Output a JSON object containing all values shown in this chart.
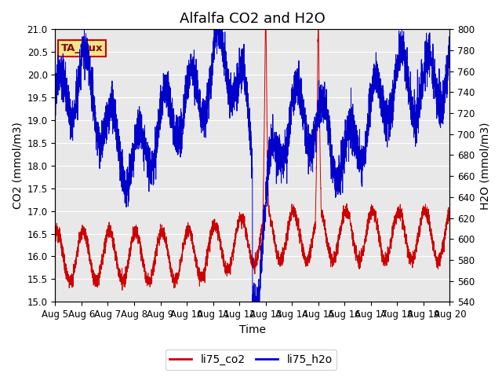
{
  "title": "Alfalfa CO2 and H2O",
  "xlabel": "Time",
  "ylabel_left": "CO2 (mmol/m3)",
  "ylabel_right": "H2O (mmol/m3)",
  "ylim_left": [
    15.0,
    21.0
  ],
  "ylim_right": [
    540,
    800
  ],
  "yticks_left": [
    15.0,
    15.5,
    16.0,
    16.5,
    17.0,
    17.5,
    18.0,
    18.5,
    19.0,
    19.5,
    20.0,
    20.5,
    21.0
  ],
  "yticks_right": [
    540,
    560,
    580,
    600,
    620,
    640,
    660,
    680,
    700,
    720,
    740,
    760,
    780,
    800
  ],
  "xtick_labels": [
    "Aug 5",
    "Aug 6",
    "Aug 7",
    "Aug 8",
    "Aug 9",
    "Aug 10",
    "Aug 11",
    "Aug 12",
    "Aug 13",
    "Aug 14",
    "Aug 15",
    "Aug 16",
    "Aug 17",
    "Aug 18",
    "Aug 19",
    "Aug 20"
  ],
  "color_co2": "#cc0000",
  "color_h2o": "#0000cc",
  "legend_co2": "li75_co2",
  "legend_h2o": "li75_h2o",
  "annotation_text": "TA_flux",
  "annotation_bg": "#f0e68c",
  "annotation_border": "#cc0000",
  "plot_bg": "#e8e8e8",
  "fig_bg": "#ffffff",
  "title_fontsize": 13,
  "axis_label_fontsize": 10,
  "tick_fontsize": 8.5
}
